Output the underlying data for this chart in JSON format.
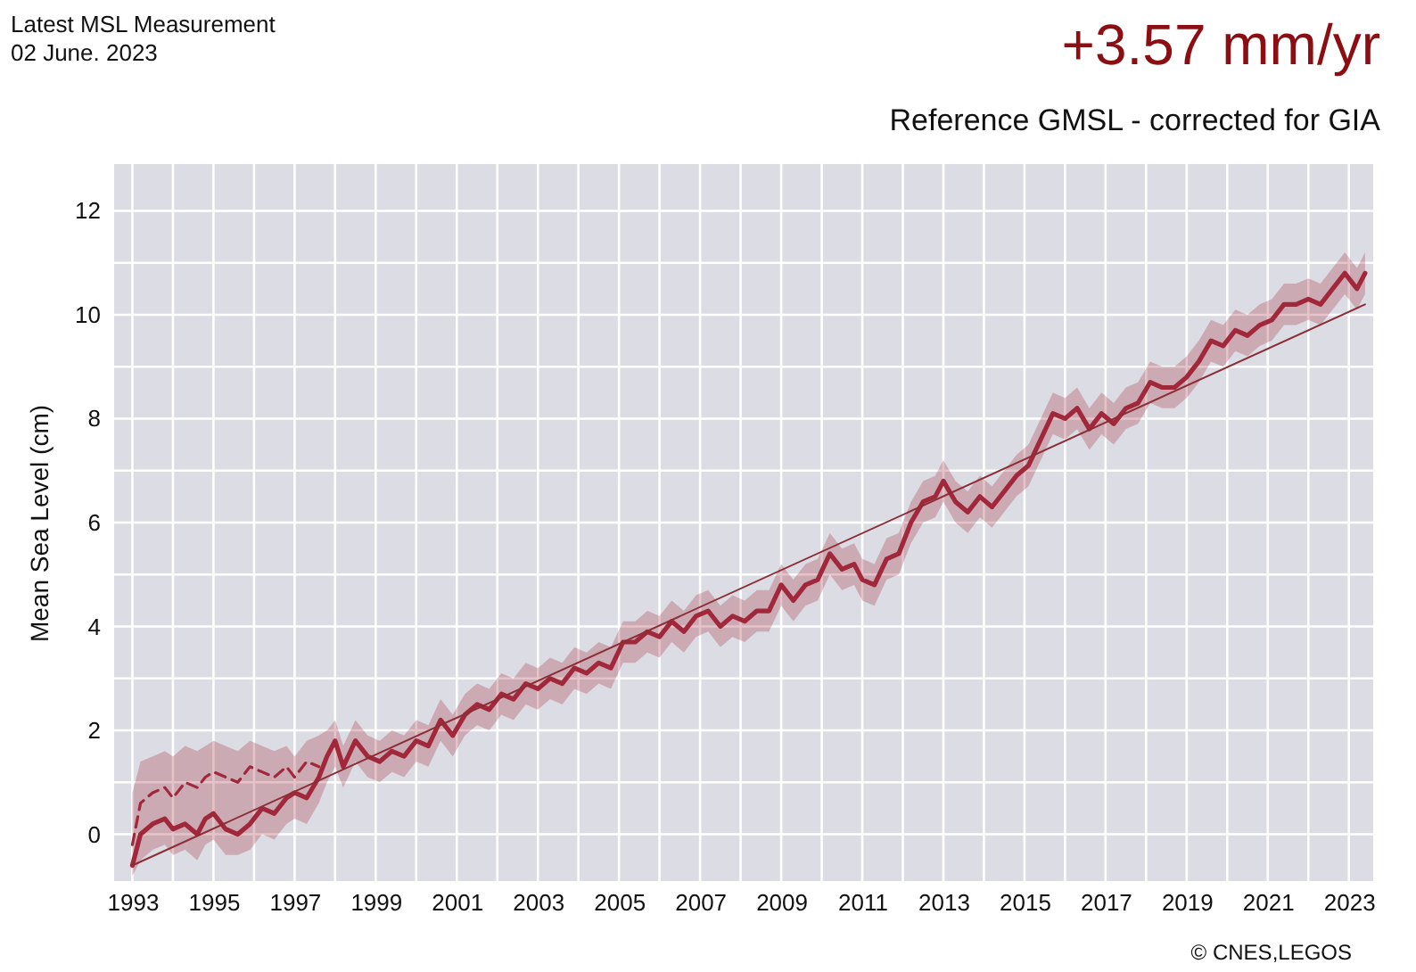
{
  "chart_data": {
    "type": "line",
    "title": "+3.57 mm/yr",
    "subtitle": "Reference GMSL - corrected for GIA",
    "ylabel": "Mean Sea Level (cm)",
    "annotations": [
      "Latest MSL Measurement",
      "02 June. 2023",
      "© CNES,LEGOS"
    ],
    "xlim": [
      1992.55,
      2023.6
    ],
    "ylim": [
      -0.9,
      12.9
    ],
    "xticks": [
      1993,
      {
        "value": 1994,
        "label": null
      },
      1995,
      {
        "value": 1996,
        "label": null
      },
      1997,
      {
        "value": 1998,
        "label": null
      },
      1999,
      {
        "value": 2000,
        "label": null
      },
      2001,
      {
        "value": 2002,
        "label": null
      },
      2003,
      {
        "value": 2004,
        "label": null
      },
      2005,
      {
        "value": 2006,
        "label": null
      },
      2007,
      {
        "value": 2008,
        "label": null
      },
      2009,
      {
        "value": 2010,
        "label": null
      },
      2011,
      {
        "value": 2012,
        "label": null
      },
      2013,
      {
        "value": 2014,
        "label": null
      },
      2015,
      {
        "value": 2016,
        "label": null
      },
      2017,
      {
        "value": 2018,
        "label": null
      },
      2019,
      {
        "value": 2020,
        "label": null
      },
      2021,
      {
        "value": 2022,
        "label": null
      },
      2023
    ],
    "yticks": [
      0,
      {
        "value": 1,
        "label": null
      },
      2,
      {
        "value": 3,
        "label": null
      },
      4,
      {
        "value": 5,
        "label": null
      },
      6,
      {
        "value": 7,
        "label": null
      },
      8,
      {
        "value": 9,
        "label": null
      },
      10,
      {
        "value": 11,
        "label": null
      },
      12
    ],
    "grid": true,
    "series": [
      {
        "type": "line",
        "color": "#a0283a",
        "line_style": "solid",
        "x": [
          1993.0,
          1993.2,
          1993.5,
          1993.8,
          1994.0,
          1994.3,
          1994.6,
          1994.8,
          1995.0,
          1995.3,
          1995.6,
          1995.9,
          1996.2,
          1996.5,
          1996.8,
          1997.0,
          1997.3,
          1997.6,
          1997.8,
          1998.0,
          1998.2,
          1998.5,
          1998.8,
          1999.1,
          1999.4,
          1999.7,
          2000.0,
          2000.3,
          2000.6,
          2000.9,
          2001.2,
          2001.5,
          2001.8,
          2002.1,
          2002.4,
          2002.7,
          2003.0,
          2003.3,
          2003.6,
          2003.9,
          2004.2,
          2004.5,
          2004.8,
          2005.1,
          2005.4,
          2005.7,
          2006.0,
          2006.3,
          2006.6,
          2006.9,
          2007.2,
          2007.5,
          2007.8,
          2008.1,
          2008.4,
          2008.7,
          2009.0,
          2009.3,
          2009.6,
          2009.9,
          2010.2,
          2010.5,
          2010.8,
          2011.0,
          2011.3,
          2011.6,
          2011.9,
          2012.2,
          2012.5,
          2012.8,
          2013.0,
          2013.3,
          2013.6,
          2013.9,
          2014.2,
          2014.5,
          2014.8,
          2015.1,
          2015.4,
          2015.7,
          2016.0,
          2016.3,
          2016.6,
          2016.9,
          2017.2,
          2017.5,
          2017.8,
          2018.1,
          2018.4,
          2018.7,
          2019.0,
          2019.3,
          2019.6,
          2019.9,
          2020.2,
          2020.5,
          2020.8,
          2021.1,
          2021.4,
          2021.7,
          2022.0,
          2022.3,
          2022.6,
          2022.9,
          2023.2,
          2023.4
        ],
        "values": [
          -0.6,
          0.0,
          0.2,
          0.3,
          0.1,
          0.2,
          0.0,
          0.3,
          0.4,
          0.1,
          0.0,
          0.2,
          0.5,
          0.4,
          0.7,
          0.8,
          0.7,
          1.1,
          1.5,
          1.8,
          1.3,
          1.8,
          1.5,
          1.4,
          1.6,
          1.5,
          1.8,
          1.7,
          2.2,
          1.9,
          2.3,
          2.5,
          2.4,
          2.7,
          2.6,
          2.9,
          2.8,
          3.0,
          2.9,
          3.2,
          3.1,
          3.3,
          3.2,
          3.7,
          3.7,
          3.9,
          3.8,
          4.1,
          3.9,
          4.2,
          4.3,
          4.0,
          4.2,
          4.1,
          4.3,
          4.3,
          4.8,
          4.5,
          4.8,
          4.9,
          5.4,
          5.1,
          5.2,
          4.9,
          4.8,
          5.3,
          5.4,
          6.0,
          6.4,
          6.5,
          6.8,
          6.4,
          6.2,
          6.5,
          6.3,
          6.6,
          6.9,
          7.1,
          7.6,
          8.1,
          8.0,
          8.2,
          7.8,
          8.1,
          7.9,
          8.2,
          8.3,
          8.7,
          8.6,
          8.6,
          8.8,
          9.1,
          9.5,
          9.4,
          9.7,
          9.6,
          9.8,
          9.9,
          10.2,
          10.2,
          10.3,
          10.2,
          10.5,
          10.8,
          10.5,
          10.8
        ],
        "lower": [
          -0.8,
          -0.5,
          -0.3,
          -0.2,
          -0.4,
          -0.3,
          -0.5,
          -0.2,
          -0.1,
          -0.4,
          -0.4,
          -0.3,
          0.0,
          -0.1,
          0.2,
          0.3,
          0.2,
          0.6,
          1.0,
          1.3,
          0.9,
          1.4,
          1.1,
          1.0,
          1.2,
          1.1,
          1.4,
          1.3,
          1.8,
          1.5,
          1.9,
          2.1,
          2.0,
          2.3,
          2.2,
          2.5,
          2.4,
          2.6,
          2.5,
          2.8,
          2.7,
          2.9,
          2.8,
          3.3,
          3.3,
          3.5,
          3.4,
          3.7,
          3.5,
          3.8,
          3.9,
          3.6,
          3.8,
          3.7,
          3.9,
          3.9,
          4.4,
          4.1,
          4.4,
          4.5,
          5.0,
          4.7,
          4.8,
          4.5,
          4.4,
          4.9,
          5.0,
          5.6,
          6.0,
          6.1,
          6.4,
          6.0,
          5.8,
          6.1,
          5.9,
          6.2,
          6.5,
          6.7,
          7.2,
          7.7,
          7.6,
          7.8,
          7.4,
          7.7,
          7.5,
          7.8,
          7.9,
          8.3,
          8.2,
          8.2,
          8.4,
          8.7,
          9.1,
          9.0,
          9.3,
          9.2,
          9.4,
          9.5,
          9.8,
          9.8,
          9.9,
          9.8,
          10.1,
          10.4,
          10.1,
          10.4
        ],
        "upper": [
          0.8,
          1.4,
          1.5,
          1.6,
          1.5,
          1.7,
          1.6,
          1.7,
          1.8,
          1.7,
          1.6,
          1.8,
          1.7,
          1.6,
          1.7,
          1.5,
          1.8,
          1.9,
          2.0,
          2.2,
          1.7,
          2.2,
          1.9,
          1.8,
          2.0,
          1.9,
          2.2,
          2.1,
          2.6,
          2.3,
          2.7,
          2.9,
          2.8,
          3.1,
          3.0,
          3.3,
          3.2,
          3.4,
          3.3,
          3.6,
          3.5,
          3.7,
          3.6,
          4.1,
          4.1,
          4.3,
          4.2,
          4.5,
          4.3,
          4.6,
          4.7,
          4.4,
          4.6,
          4.5,
          4.7,
          4.7,
          5.2,
          4.9,
          5.2,
          5.3,
          5.8,
          5.5,
          5.6,
          5.3,
          5.2,
          5.7,
          5.8,
          6.4,
          6.8,
          6.9,
          7.2,
          6.8,
          6.6,
          6.9,
          6.7,
          7.0,
          7.3,
          7.5,
          8.0,
          8.5,
          8.4,
          8.6,
          8.2,
          8.5,
          8.3,
          8.6,
          8.7,
          9.1,
          9.0,
          9.0,
          9.2,
          9.5,
          9.9,
          9.8,
          10.1,
          10.0,
          10.2,
          10.3,
          10.6,
          10.6,
          10.7,
          10.6,
          10.9,
          11.2,
          10.9,
          11.2
        ]
      },
      {
        "type": "line",
        "color": "#a0283a",
        "line_style": "dashed",
        "x": [
          1993.0,
          1993.2,
          1993.5,
          1993.8,
          1994.0,
          1994.3,
          1994.6,
          1994.8,
          1995.0,
          1995.3,
          1995.6,
          1995.9,
          1996.2,
          1996.5,
          1996.8,
          1997.0,
          1997.3,
          1997.6
        ],
        "values": [
          -0.2,
          0.6,
          0.8,
          0.9,
          0.7,
          1.0,
          0.9,
          1.1,
          1.2,
          1.1,
          1.0,
          1.3,
          1.2,
          1.1,
          1.3,
          1.1,
          1.4,
          1.3
        ]
      },
      {
        "type": "line",
        "color": "#8b2e36",
        "line_style": "solid",
        "x": [
          1993.0,
          2023.4
        ],
        "values": [
          -0.6,
          10.2
        ]
      }
    ]
  }
}
